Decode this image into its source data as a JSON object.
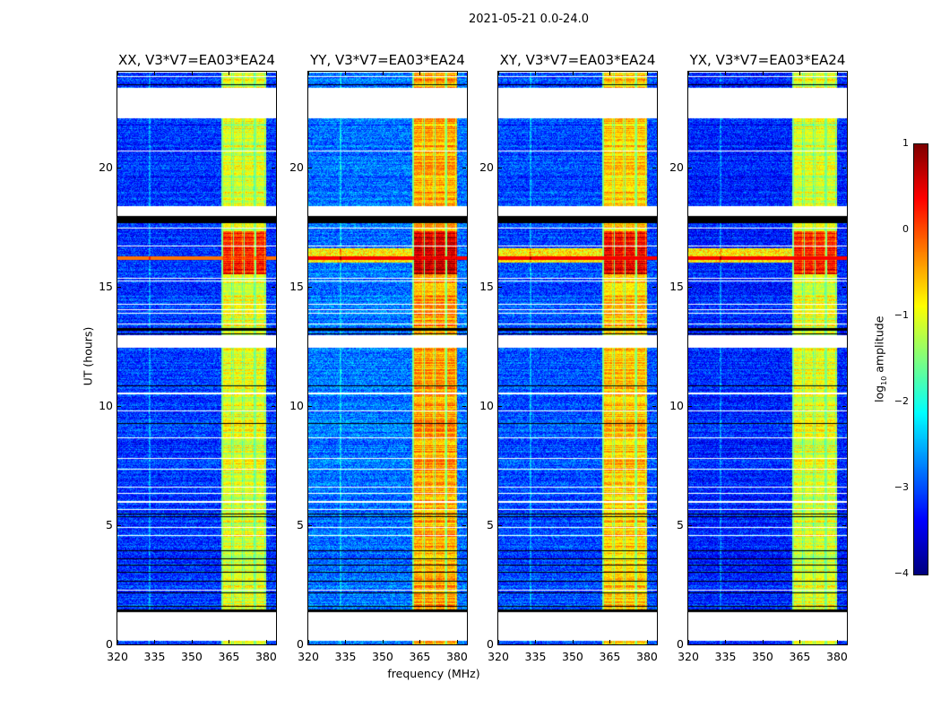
{
  "suptitle": "2021-05-21 0.0-24.0",
  "chart_data": {
    "type": "heatmap",
    "xlabel": "frequency (MHz)",
    "ylabel": "UT (hours)",
    "xlim": [
      320,
      384
    ],
    "ylim": [
      0,
      24
    ],
    "xticks": [
      "320",
      "335",
      "350",
      "365",
      "380"
    ],
    "yticks": [
      "0",
      "5",
      "10",
      "15",
      "20"
    ],
    "colorbar": {
      "label_main": "log",
      "label_sub": "10",
      "label_tail": " amplitude",
      "range": [
        -4,
        1
      ],
      "ticks": [
        "1",
        "0",
        "−1",
        "−2",
        "−3",
        "−4"
      ],
      "colormap": "jet"
    },
    "rfi_band_mhz": [
      362,
      380
    ],
    "strong_rfi_hours": [
      15.5,
      17.3
    ],
    "flagged_hours": [
      [
        0.15,
        1.35
      ],
      [
        12.45,
        12.95
      ],
      [
        17.95,
        18.35
      ],
      [
        22.05,
        23.3
      ]
    ],
    "panels": [
      {
        "title": "XX, V3*V7=EA03*EA24",
        "background_log_amp": -3.1,
        "band_log_amp": -1.0,
        "strong_band_log_amp": 0.3
      },
      {
        "title": "YY, V3*V7=EA03*EA24",
        "background_log_amp": -2.8,
        "band_log_amp": -0.4,
        "strong_band_log_amp": 0.7
      },
      {
        "title": "XY, V3*V7=EA03*EA24",
        "background_log_amp": -3.0,
        "band_log_amp": -0.6,
        "strong_band_log_amp": 0.5
      },
      {
        "title": "YX, V3*V7=EA03*EA24",
        "background_log_amp": -3.2,
        "band_log_amp": -1.0,
        "strong_band_log_amp": 0.3
      }
    ]
  }
}
